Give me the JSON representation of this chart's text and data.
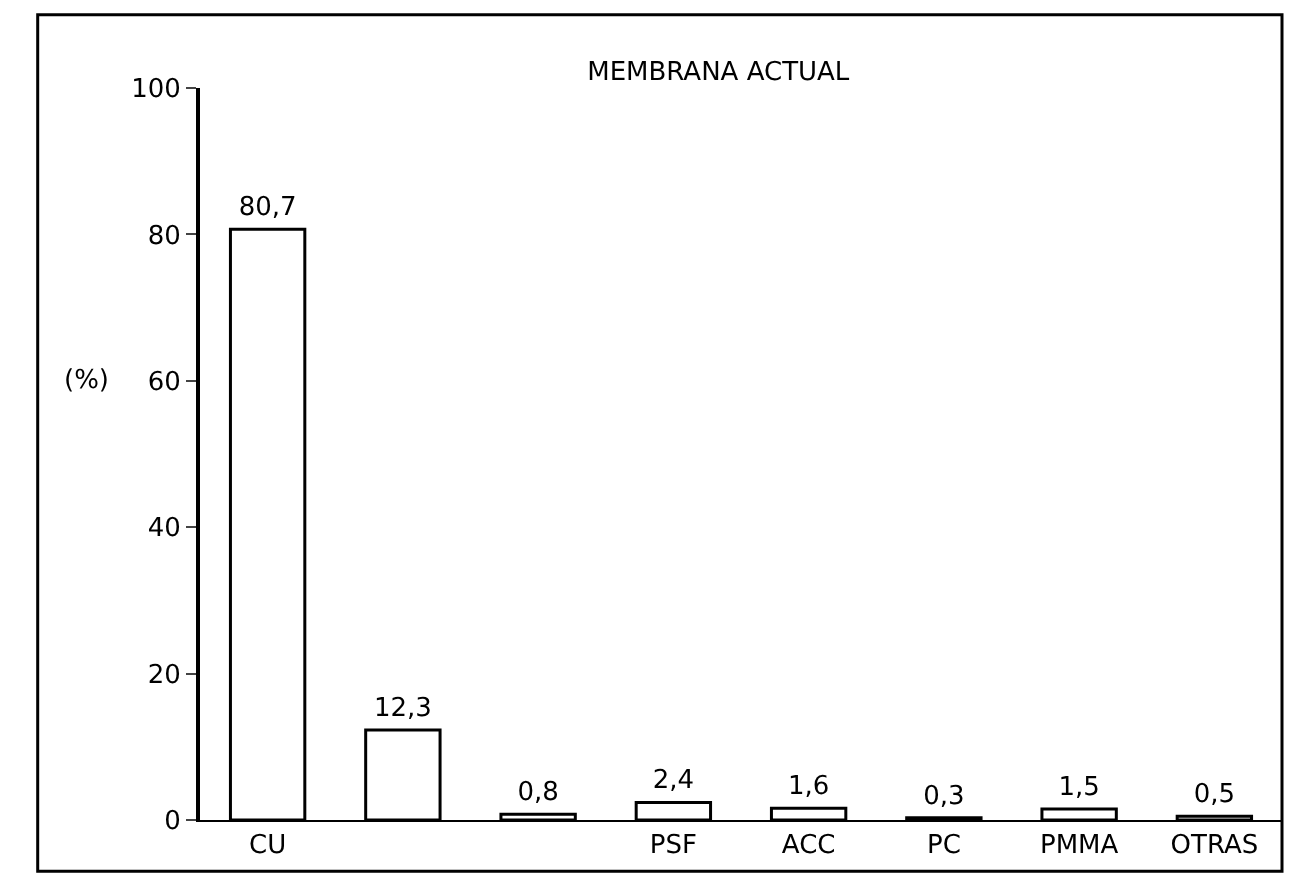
{
  "chart_data": {
    "type": "bar",
    "title": "MEMBRANA ACTUAL",
    "ylabel": "(%)",
    "categories": [
      "CU",
      null,
      null,
      "PSF",
      "ACC",
      "PC",
      "PMMA",
      "OTRAS"
    ],
    "values": [
      80.7,
      12.3,
      0.8,
      2.4,
      1.6,
      0.3,
      1.5,
      0.5
    ],
    "value_labels": [
      "80,7",
      "12,3",
      "0,8",
      "2,4",
      "1,6",
      "0,3",
      "1,5",
      "0,5"
    ],
    "color": "#ffffff",
    "ylim": [
      0,
      100
    ],
    "yticks": [
      0,
      20,
      40,
      60,
      80,
      100
    ],
    "grid": false
  }
}
